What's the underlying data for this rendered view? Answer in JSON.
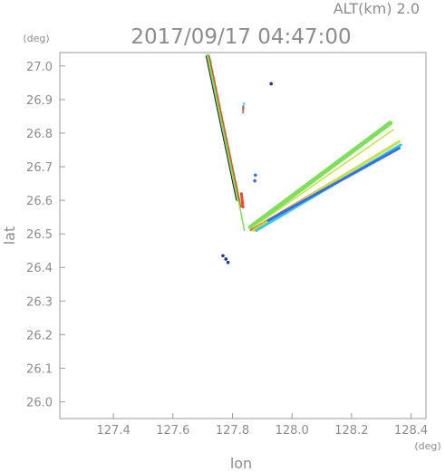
{
  "header": {
    "alt_label": "ALT(km)  2.0",
    "timestamp": "2017/09/17 04:47:00",
    "lat_unit": "(deg)",
    "lon_unit": "(deg)"
  },
  "chart_data": {
    "type": "scatter",
    "title": "2017/09/17 04:47:00",
    "subtitle": "ALT(km)  2.0",
    "xlabel": "lon",
    "ylabel": "lat",
    "xlim": [
      127.22,
      128.45
    ],
    "ylim": [
      25.95,
      27.04
    ],
    "xticks": [
      127.4,
      127.6,
      127.8,
      128.0,
      128.2,
      128.4
    ],
    "yticks": [
      26.0,
      26.1,
      26.2,
      26.3,
      26.4,
      26.5,
      26.6,
      26.7,
      26.8,
      26.9,
      27.0
    ],
    "x_tick_labels": [
      "127.4",
      "127.6",
      "127.8",
      "128.0",
      "128.2",
      "128.4"
    ],
    "y_tick_labels": [
      "26.0",
      "26.1",
      "26.2",
      "26.3",
      "26.4",
      "26.5",
      "26.6",
      "26.7",
      "26.8",
      "26.9",
      "27.0"
    ],
    "grid": false,
    "colors": {
      "text": "#8c8c8c",
      "frame": "#9a9a9a",
      "green": "#7ee05a",
      "yellowgreen": "#c8e04a",
      "red": "#e84a2a",
      "cyan": "#35c8e8",
      "blue": "#3a6ee0",
      "navy": "#1a3a9a",
      "black": "#222222"
    },
    "features": [
      {
        "kind": "band",
        "color": "green",
        "width": 4,
        "points": [
          [
            127.717,
            27.03
          ],
          [
            127.82,
            26.6
          ]
        ]
      },
      {
        "kind": "band",
        "color": "red",
        "width": 1.5,
        "points": [
          [
            127.722,
            27.03
          ],
          [
            127.828,
            26.58
          ]
        ]
      },
      {
        "kind": "band",
        "color": "black",
        "width": 1,
        "points": [
          [
            127.711,
            27.03
          ],
          [
            127.813,
            26.6
          ]
        ]
      },
      {
        "kind": "band",
        "color": "green",
        "width": 1.5,
        "points": [
          [
            127.82,
            26.6
          ],
          [
            127.84,
            26.51
          ]
        ]
      },
      {
        "kind": "band",
        "color": "red",
        "width": 3,
        "points": [
          [
            127.83,
            26.62
          ],
          [
            127.835,
            26.58
          ]
        ]
      },
      {
        "kind": "band",
        "color": "green",
        "width": 5,
        "points": [
          [
            127.86,
            26.52
          ],
          [
            128.33,
            26.83
          ]
        ]
      },
      {
        "kind": "band",
        "color": "yellowgreen",
        "width": 1.5,
        "points": [
          [
            127.87,
            26.52
          ],
          [
            128.34,
            26.81
          ]
        ]
      },
      {
        "kind": "band",
        "color": "red",
        "width": 1.5,
        "points": [
          [
            127.86,
            26.51
          ],
          [
            128.35,
            26.77
          ]
        ]
      },
      {
        "kind": "band",
        "color": "yellowgreen",
        "width": 3,
        "points": [
          [
            127.87,
            26.51
          ],
          [
            128.36,
            26.775
          ]
        ]
      },
      {
        "kind": "band",
        "color": "cyan",
        "width": 3,
        "points": [
          [
            127.88,
            26.51
          ],
          [
            128.365,
            26.765
          ]
        ]
      },
      {
        "kind": "band",
        "color": "blue",
        "width": 3,
        "points": [
          [
            127.92,
            26.54
          ],
          [
            128.36,
            26.755
          ]
        ]
      },
      {
        "kind": "band",
        "color": "cyan",
        "width": 1.5,
        "points": [
          [
            127.838,
            26.87
          ],
          [
            127.838,
            26.89
          ]
        ]
      },
      {
        "kind": "band",
        "color": "red",
        "width": 1.5,
        "points": [
          [
            127.835,
            26.86
          ],
          [
            127.835,
            26.88
          ]
        ]
      },
      {
        "kind": "blob",
        "color": "blue",
        "points": [
          [
            127.877,
            26.675
          ],
          [
            127.875,
            26.658
          ]
        ]
      },
      {
        "kind": "blob",
        "color": "navy",
        "points": [
          [
            127.768,
            26.435
          ],
          [
            127.778,
            26.425
          ],
          [
            127.785,
            26.415
          ]
        ]
      },
      {
        "kind": "blob",
        "color": "navy",
        "points": [
          [
            127.93,
            26.947
          ]
        ]
      }
    ]
  }
}
